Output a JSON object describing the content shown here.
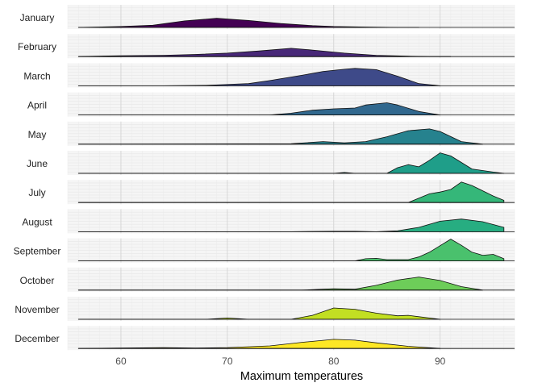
{
  "chart_data": {
    "type": "ridgeline",
    "title": "",
    "xlabel": "Maximum temperatures",
    "ylabel": "",
    "xlim": [
      55,
      97
    ],
    "x_ticks": [
      "60",
      "70",
      "80",
      "90"
    ],
    "x_tick_values": [
      60,
      70,
      80,
      90
    ],
    "grid": true,
    "legend": "none",
    "series": [
      {
        "name": "January",
        "color": "#440154",
        "x": [
          56,
          60,
          63,
          66,
          69,
          72,
          75,
          78,
          80,
          83,
          86,
          88
        ],
        "density": [
          0.0,
          0.04,
          0.1,
          0.3,
          0.42,
          0.32,
          0.18,
          0.08,
          0.04,
          0.02,
          0.0,
          0.0
        ]
      },
      {
        "name": "February",
        "color": "#482878",
        "x": [
          56,
          60,
          64,
          67,
          70,
          73,
          76,
          78,
          81,
          84,
          87,
          89,
          91
        ],
        "density": [
          0.0,
          0.04,
          0.06,
          0.1,
          0.16,
          0.26,
          0.38,
          0.3,
          0.16,
          0.06,
          0.02,
          0.0,
          0.0
        ]
      },
      {
        "name": "March",
        "color": "#3E4A89",
        "x": [
          56,
          64,
          68,
          72,
          74,
          77,
          79,
          81,
          82,
          84,
          86,
          88,
          90
        ],
        "density": [
          0.0,
          0.0,
          0.02,
          0.1,
          0.24,
          0.48,
          0.66,
          0.76,
          0.8,
          0.74,
          0.44,
          0.1,
          0.0
        ]
      },
      {
        "name": "April",
        "color": "#31688E",
        "x": [
          56,
          74,
          76,
          78,
          80,
          82,
          83,
          85,
          86,
          88,
          90
        ],
        "density": [
          0.0,
          0.0,
          0.08,
          0.22,
          0.28,
          0.32,
          0.46,
          0.56,
          0.46,
          0.16,
          0.0
        ]
      },
      {
        "name": "May",
        "color": "#26828E",
        "x": [
          56,
          76,
          79,
          81,
          83,
          85,
          87,
          89,
          90,
          92,
          94
        ],
        "density": [
          0.0,
          0.02,
          0.12,
          0.06,
          0.12,
          0.34,
          0.62,
          0.7,
          0.58,
          0.12,
          0.0
        ]
      },
      {
        "name": "June",
        "color": "#1F9E89",
        "x": [
          56,
          80,
          81,
          82,
          85,
          86,
          87,
          88,
          89,
          90,
          91,
          93,
          95,
          96
        ],
        "density": [
          0.0,
          0.0,
          0.04,
          0.0,
          0.0,
          0.26,
          0.4,
          0.3,
          0.6,
          0.94,
          0.8,
          0.2,
          0.06,
          0.0
        ]
      },
      {
        "name": "July",
        "color": "#35B779",
        "x": [
          56,
          87,
          89,
          90,
          91,
          92,
          93,
          95,
          96
        ],
        "density": [
          0.0,
          0.0,
          0.4,
          0.48,
          0.6,
          0.94,
          0.78,
          0.3,
          0.1
        ]
      },
      {
        "name": "August",
        "color": "#27AD81",
        "x": [
          56,
          76,
          80,
          82,
          84,
          86,
          88,
          90,
          92,
          94,
          96
        ],
        "density": [
          0.0,
          0.0,
          0.02,
          0.02,
          0.0,
          0.04,
          0.2,
          0.48,
          0.58,
          0.46,
          0.2
        ]
      },
      {
        "name": "September",
        "color": "#4AC16D",
        "x": [
          56,
          82,
          83,
          84,
          85,
          87,
          88,
          89,
          90,
          91,
          92,
          93,
          94,
          95,
          96
        ],
        "density": [
          0.0,
          0.0,
          0.1,
          0.12,
          0.06,
          0.06,
          0.18,
          0.4,
          0.7,
          1.0,
          0.72,
          0.4,
          0.26,
          0.3,
          0.1
        ]
      },
      {
        "name": "October",
        "color": "#6DCD59",
        "x": [
          56,
          77,
          79,
          80,
          82,
          84,
          86,
          88,
          90,
          92,
          94
        ],
        "density": [
          0.0,
          0.0,
          0.04,
          0.06,
          0.04,
          0.22,
          0.46,
          0.6,
          0.44,
          0.16,
          0.0
        ]
      },
      {
        "name": "November",
        "color": "#C2DF23",
        "x": [
          56,
          68,
          70,
          72,
          76,
          78,
          80,
          82,
          84,
          86,
          87,
          88,
          90
        ],
        "density": [
          0.0,
          0.0,
          0.06,
          0.0,
          0.0,
          0.18,
          0.52,
          0.46,
          0.28,
          0.16,
          0.18,
          0.12,
          0.0
        ]
      },
      {
        "name": "December",
        "color": "#FDE725",
        "x": [
          56,
          60,
          64,
          67,
          70,
          74,
          77,
          80,
          82,
          84,
          87,
          90
        ],
        "density": [
          0.0,
          0.02,
          0.04,
          0.02,
          0.04,
          0.12,
          0.28,
          0.42,
          0.38,
          0.26,
          0.1,
          0.0
        ]
      }
    ]
  }
}
